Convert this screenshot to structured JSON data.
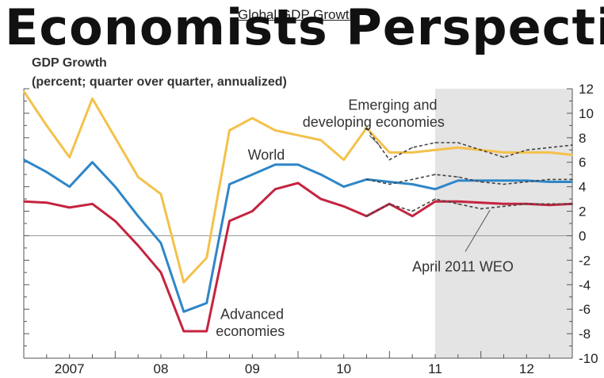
{
  "overlay_title": "Economists Perspecti",
  "chart_data": {
    "type": "line",
    "title": "Global GDP Growth",
    "ylabel": "GDP Growth",
    "ylabel_sub": "(percent; quarter over quarter, annualized)",
    "ylim": [
      -10,
      12
    ],
    "yticks": [
      -10,
      -8,
      -6,
      -4,
      -2,
      0,
      2,
      4,
      6,
      8,
      10,
      12
    ],
    "xlim": [
      2006.5,
      2012.5
    ],
    "xtick_labels": [
      {
        "x": 2007,
        "label": "2007"
      },
      {
        "x": 2008,
        "label": "08"
      },
      {
        "x": 2009,
        "label": "09"
      },
      {
        "x": 2010,
        "label": "10"
      },
      {
        "x": 2011,
        "label": "11"
      },
      {
        "x": 2012,
        "label": "12"
      }
    ],
    "forecast_shade": {
      "from": 2011.0,
      "to": 2012.5
    },
    "series": [
      {
        "name": "Emerging and developing economies",
        "color": "#f4c14a",
        "style": "solid",
        "x": [
          2006.5,
          2006.75,
          2007.0,
          2007.25,
          2007.5,
          2007.75,
          2008.0,
          2008.25,
          2008.5,
          2008.75,
          2009.0,
          2009.25,
          2009.5,
          2009.75,
          2010.0,
          2010.25,
          2010.5,
          2010.75,
          2011.0,
          2011.25,
          2011.5,
          2011.75,
          2012.0,
          2012.25,
          2012.5
        ],
        "y": [
          11.8,
          9.0,
          6.4,
          11.2,
          8.0,
          4.8,
          3.4,
          -3.8,
          -1.8,
          8.6,
          9.6,
          8.6,
          8.2,
          7.8,
          6.2,
          8.8,
          6.8,
          6.8,
          7.0,
          7.2,
          7.0,
          6.8,
          6.8,
          6.8,
          6.6
        ]
      },
      {
        "name": "World",
        "color": "#2e86c8",
        "style": "solid",
        "x": [
          2006.5,
          2006.75,
          2007.0,
          2007.25,
          2007.5,
          2007.75,
          2008.0,
          2008.25,
          2008.5,
          2008.75,
          2009.0,
          2009.25,
          2009.5,
          2009.75,
          2010.0,
          2010.25,
          2010.5,
          2010.75,
          2011.0,
          2011.25,
          2011.5,
          2011.75,
          2012.0,
          2012.25,
          2012.5
        ],
        "y": [
          6.2,
          5.2,
          4.0,
          6.0,
          4.0,
          1.6,
          -0.6,
          -6.2,
          -5.5,
          4.2,
          5.0,
          5.8,
          5.8,
          5.0,
          4.0,
          4.6,
          4.4,
          4.2,
          3.8,
          4.5,
          4.5,
          4.5,
          4.5,
          4.4,
          4.4
        ]
      },
      {
        "name": "Advanced economies",
        "color": "#c4243f",
        "style": "solid",
        "x": [
          2006.5,
          2006.75,
          2007.0,
          2007.25,
          2007.5,
          2007.75,
          2008.0,
          2008.25,
          2008.5,
          2008.75,
          2009.0,
          2009.25,
          2009.5,
          2009.75,
          2010.0,
          2010.25,
          2010.5,
          2010.75,
          2011.0,
          2011.25,
          2011.5,
          2011.75,
          2012.0,
          2012.25,
          2012.5
        ],
        "y": [
          2.8,
          2.7,
          2.3,
          2.6,
          1.2,
          -0.8,
          -3.0,
          -7.8,
          -7.8,
          1.2,
          2.0,
          3.8,
          4.3,
          3.0,
          2.4,
          1.6,
          2.6,
          1.6,
          2.8,
          2.8,
          2.7,
          2.6,
          2.6,
          2.5,
          2.6
        ]
      },
      {
        "name": "April 2011 WEO (emerging)",
        "color": "#444444",
        "style": "dashed",
        "x": [
          2010.25,
          2010.5,
          2010.75,
          2011.0,
          2011.25,
          2011.5,
          2011.75,
          2012.0,
          2012.25,
          2012.5
        ],
        "y": [
          8.8,
          6.2,
          7.2,
          7.6,
          7.6,
          7.0,
          6.4,
          7.0,
          7.2,
          7.4
        ]
      },
      {
        "name": "April 2011 WEO (world)",
        "color": "#444444",
        "style": "dashed",
        "x": [
          2010.25,
          2010.5,
          2010.75,
          2011.0,
          2011.25,
          2011.5,
          2011.75,
          2012.0,
          2012.25,
          2012.5
        ],
        "y": [
          4.6,
          4.2,
          4.6,
          5.0,
          4.8,
          4.4,
          4.2,
          4.4,
          4.6,
          4.6
        ]
      },
      {
        "name": "April 2011 WEO (advanced)",
        "color": "#444444",
        "style": "dashed",
        "x": [
          2010.25,
          2010.5,
          2010.75,
          2011.0,
          2011.25,
          2011.5,
          2011.75,
          2012.0,
          2012.25,
          2012.5
        ],
        "y": [
          1.6,
          2.6,
          2.0,
          3.0,
          2.6,
          2.2,
          2.4,
          2.6,
          2.6,
          2.6
        ]
      }
    ],
    "annotations": [
      {
        "text": "Emerging and",
        "x": 2010.05,
        "y": 10.3
      },
      {
        "text": "developing economies",
        "x": 2009.55,
        "y": 8.9
      },
      {
        "text": "World",
        "x": 2008.95,
        "y": 6.2
      },
      {
        "text": "Advanced",
        "x": 2008.65,
        "y": -6.8
      },
      {
        "text": "economies",
        "x": 2008.6,
        "y": -8.2
      },
      {
        "text": "April 2011 WEO",
        "x": 2010.75,
        "y": -2.9
      }
    ],
    "grid": false,
    "zero_line": true
  }
}
